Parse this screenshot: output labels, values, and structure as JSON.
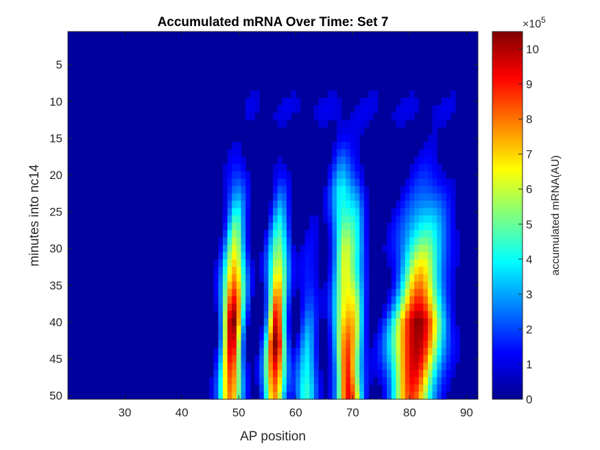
{
  "chart_data": {
    "type": "heatmap",
    "title": "Accumulated mRNA Over Time: Set 7",
    "xlabel": "AP position",
    "ylabel": "minutes into nc14",
    "xlim": [
      20,
      92
    ],
    "ylim": [
      0.5,
      50.5
    ],
    "y_reversed": true,
    "xticks": [
      30,
      40,
      50,
      60,
      70,
      80,
      90
    ],
    "yticks": [
      5,
      10,
      15,
      20,
      25,
      30,
      35,
      40,
      45,
      50
    ],
    "colormap": "jet",
    "grid": false,
    "colorbar": {
      "label": "accumulated mRNA(AU)",
      "exponent_label": "×10",
      "exponent": "5",
      "ticks": [
        0,
        1,
        2,
        3,
        4,
        5,
        6,
        7,
        8,
        9,
        10
      ],
      "clim": [
        0,
        10.5
      ],
      "placement": "right"
    },
    "stripes": [
      {
        "center_start": 50.6,
        "center_end": 48.5,
        "sigma": 1.3,
        "onset": 12,
        "ramp": 15,
        "peak_time": 40,
        "peak": 10.2,
        "tail": 0.75
      },
      {
        "center_start": 58.2,
        "center_end": 56.2,
        "sigma": 1.2,
        "onset": 13,
        "ramp": 16,
        "peak_time": 43,
        "peak": 10.3,
        "tail": 0.72
      },
      {
        "center_start": 63.8,
        "center_end": 61.8,
        "sigma": 1.2,
        "onset": 16,
        "ramp": 22,
        "peak_time": 49,
        "peak": 4.2,
        "tail": 1.0
      },
      {
        "center_start": 67.6,
        "center_end": 69.0,
        "sigma": 1.4,
        "onset": 10,
        "ramp": 12,
        "peak_time": 49,
        "peak": 8.0,
        "tail": 1.0
      },
      {
        "center_start": 71.0,
        "center_end": 70.6,
        "sigma": 1.1,
        "onset": 10,
        "ramp": 12,
        "peak_time": 30,
        "peak": 3.0,
        "tail": 0.8
      },
      {
        "center_start": 85.0,
        "center_end": 80.5,
        "sigma": 2.8,
        "onset": 12,
        "ramp": 17,
        "peak_time": 40,
        "peak": 10.2,
        "tail": 0.82
      }
    ]
  }
}
